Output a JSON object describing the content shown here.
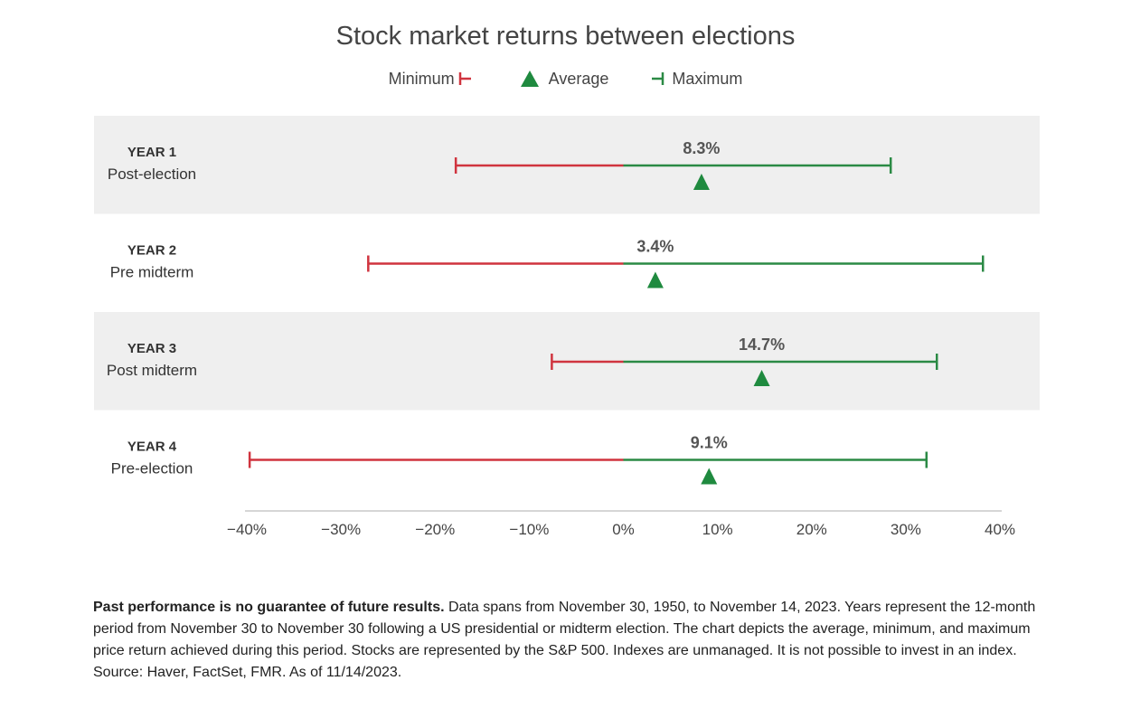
{
  "chart_data": {
    "type": "range",
    "title": "Stock market returns between elections",
    "legend": {
      "minimum_label": "Minimum",
      "average_label": "Average",
      "maximum_label": "Maximum"
    },
    "xlim": [
      -40,
      40
    ],
    "xticks": [
      -40,
      -30,
      -20,
      -10,
      0,
      10,
      20,
      30,
      40
    ],
    "xtick_labels": [
      "−40%",
      "−30%",
      "−20%",
      "−10%",
      "0%",
      "10%",
      "20%",
      "30%",
      "40%"
    ],
    "categories": [
      {
        "label": "YEAR 1",
        "sublabel": "Post-election",
        "min": -17.8,
        "avg": 8.3,
        "avg_label": "8.3%",
        "max": 28.4,
        "shaded": true
      },
      {
        "label": "YEAR 2",
        "sublabel": "Pre midterm",
        "min": -27.1,
        "avg": 3.4,
        "avg_label": "3.4%",
        "max": 38.2,
        "shaded": false
      },
      {
        "label": "YEAR 3",
        "sublabel": "Post midterm",
        "min": -7.6,
        "avg": 14.7,
        "avg_label": "14.7%",
        "max": 33.3,
        "shaded": true
      },
      {
        "label": "YEAR 4",
        "sublabel": "Pre-election",
        "min": -39.7,
        "avg": 9.1,
        "avg_label": "9.1%",
        "max": 32.2,
        "shaded": false
      }
    ]
  },
  "colors": {
    "minimum": "#d0343f",
    "maximum": "#2b8a45",
    "average": "#1f8a3f",
    "band": "#efefef",
    "axis": "#d6d6d6"
  },
  "footnote": {
    "bold": "Past performance is no guarantee of future results.",
    "text": " Data spans from November 30, 1950, to November 14, 2023. Years represent the 12-month period from November 30 to November 30 following a US presidential or midterm election. The chart depicts the average, minimum, and maximum price return achieved during this period. Stocks are represented by the S&P 500. Indexes are unmanaged. It is not possible to invest in an index. Source: Haver, FactSet, FMR. As of 11/14/2023."
  }
}
